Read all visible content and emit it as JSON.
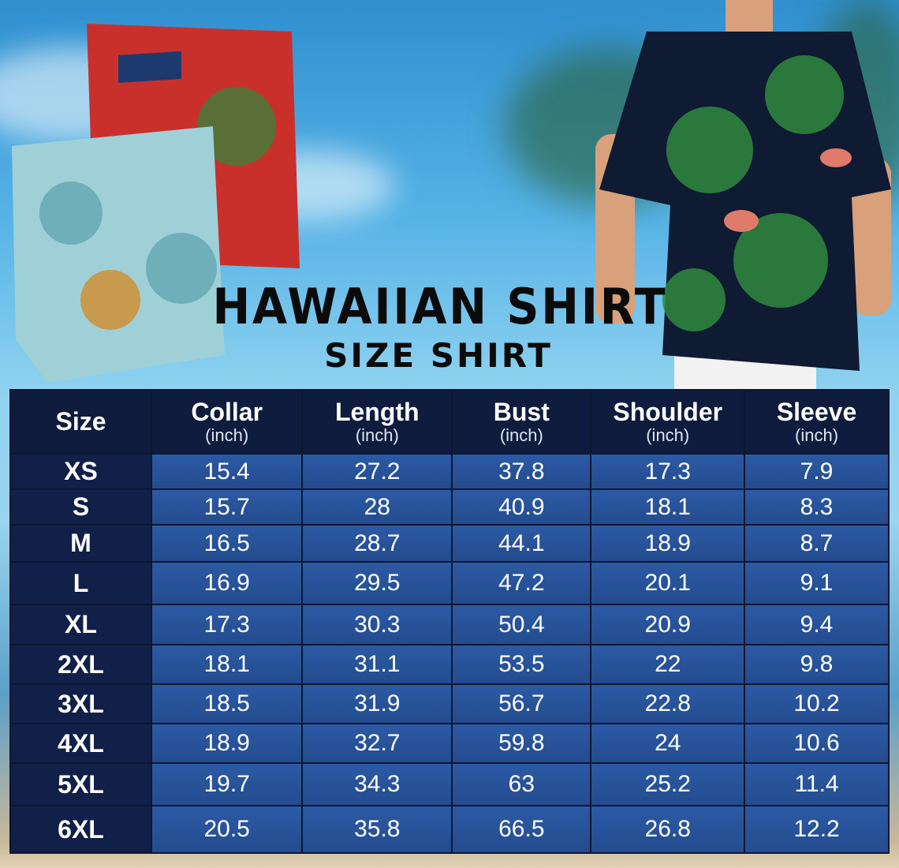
{
  "title": "HAWAIIAN SHIRT",
  "subtitle": "SIZE SHIRT",
  "colors": {
    "header_bg": "#0f1c3d",
    "cell_bg": "#2b5aa4",
    "size_col_bg": "#102048",
    "text": "#ffffff"
  },
  "table": {
    "headers": [
      {
        "label": "Size",
        "unit": ""
      },
      {
        "label": "Collar",
        "unit": "(inch)"
      },
      {
        "label": "Length",
        "unit": "(inch)"
      },
      {
        "label": "Bust",
        "unit": "(inch)"
      },
      {
        "label": "Shoulder",
        "unit": "(inch)"
      },
      {
        "label": "Sleeve",
        "unit": "(inch)"
      }
    ],
    "rows": [
      [
        "XS",
        "15.4",
        "27.2",
        "37.8",
        "17.3",
        "7.9"
      ],
      [
        "S",
        "15.7",
        "28",
        "40.9",
        "18.1",
        "8.3"
      ],
      [
        "M",
        "16.5",
        "28.7",
        "44.1",
        "18.9",
        "8.7"
      ],
      [
        "L",
        "16.9",
        "29.5",
        "47.2",
        "20.1",
        "9.1"
      ],
      [
        "XL",
        "17.3",
        "30.3",
        "50.4",
        "20.9",
        "9.4"
      ],
      [
        "2XL",
        "18.1",
        "31.1",
        "53.5",
        "22",
        "9.8"
      ],
      [
        "3XL",
        "18.5",
        "31.9",
        "56.7",
        "22.8",
        "10.2"
      ],
      [
        "4XL",
        "18.9",
        "32.7",
        "59.8",
        "24",
        "10.6"
      ],
      [
        "5XL",
        "19.7",
        "34.3",
        "63",
        "25.2",
        "11.4"
      ],
      [
        "6XL",
        "20.5",
        "35.8",
        "66.5",
        "26.8",
        "12.2"
      ]
    ]
  }
}
